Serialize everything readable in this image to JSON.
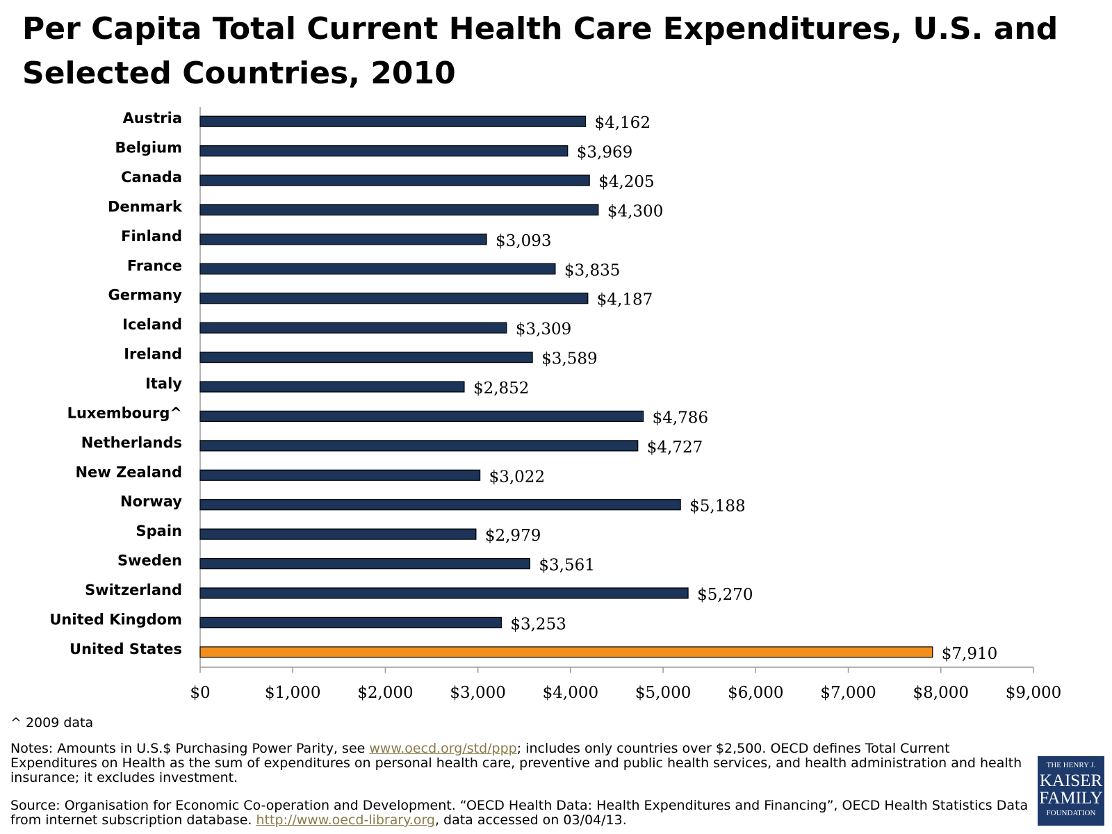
{
  "chart_data": {
    "type": "bar",
    "orientation": "horizontal",
    "title": "Per Capita Total Current Health Care Expenditures, U.S. and Selected Countries, 2010",
    "categories": [
      "Austria",
      "Belgium",
      "Canada",
      "Denmark",
      "Finland",
      "France",
      "Germany",
      "Iceland",
      "Ireland",
      "Italy",
      "Luxembourg^",
      "Netherlands",
      "New Zealand",
      "Norway",
      "Spain",
      "Sweden",
      "Switzerland",
      "United Kingdom",
      "United States"
    ],
    "values": [
      4162,
      3969,
      4205,
      4300,
      3093,
      3835,
      4187,
      3309,
      3589,
      2852,
      4786,
      4727,
      3022,
      5188,
      2979,
      3561,
      5270,
      3253,
      7910
    ],
    "value_labels": [
      "$4,162",
      "$3,969",
      "$4,205",
      "$4,300",
      "$3,093",
      "$3,835",
      "$4,187",
      "$3,309",
      "$3,589",
      "$2,852",
      "$4,786",
      "$4,727",
      "$3,022",
      "$5,188",
      "$2,979",
      "$3,561",
      "$5,270",
      "$3,253",
      "$7,910"
    ],
    "colors": [
      "#1b3457",
      "#1b3457",
      "#1b3457",
      "#1b3457",
      "#1b3457",
      "#1b3457",
      "#1b3457",
      "#1b3457",
      "#1b3457",
      "#1b3457",
      "#1b3457",
      "#1b3457",
      "#1b3457",
      "#1b3457",
      "#1b3457",
      "#1b3457",
      "#1b3457",
      "#1b3457",
      "#f28e1c"
    ],
    "xlim": [
      0,
      9000
    ],
    "xticks": [
      {
        "value": 0,
        "label": "$0"
      },
      {
        "value": 1000,
        "label": "$1,000"
      },
      {
        "value": 2000,
        "label": "$2,000"
      },
      {
        "value": 3000,
        "label": "$3,000"
      },
      {
        "value": 4000,
        "label": "$4,000"
      },
      {
        "value": 5000,
        "label": "$5,000"
      },
      {
        "value": 6000,
        "label": "$6,000"
      },
      {
        "value": 7000,
        "label": "$7,000"
      },
      {
        "value": 8000,
        "label": "$8,000"
      },
      {
        "value": 9000,
        "label": "$9,000"
      }
    ],
    "grid": false
  },
  "footnote": "^ 2009 data",
  "notes": {
    "before": "Notes:  Amounts in U.S.$ Purchasing Power Parity, see ",
    "link": "www.oecd.org/std/ppp",
    "after": "; includes only countries over $2,500.  OECD defines Total Current Expenditures on Health as the sum of expenditures on personal health care, preventive and public health services, and health administration and health insurance; it excludes investment."
  },
  "source": {
    "before": "Source:  Organisation for Economic Co-operation and Development. “OECD Health Data: Health Expenditures and Financing”, OECD Health Statistics Data from internet subscription database. ",
    "link": "http://www.oecd-library.org",
    "after": ", data accessed on 03/04/13."
  },
  "logo": [
    "THE HENRY J.",
    "KAISER",
    "FAMILY",
    "FOUNDATION"
  ]
}
